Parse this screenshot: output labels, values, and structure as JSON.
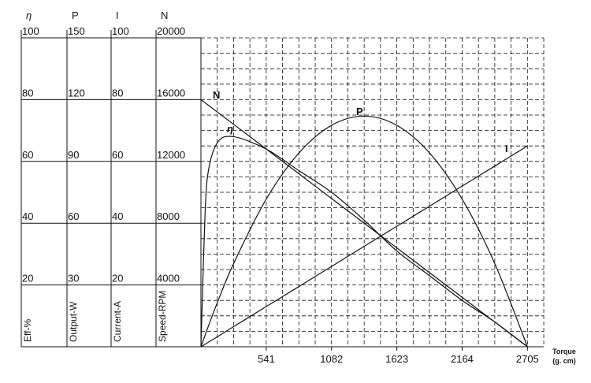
{
  "chart_data": {
    "type": "line",
    "x_label": "Torque",
    "x_unit": "(g. cm)",
    "x": [
      0,
      27,
      54,
      135,
      270,
      541,
      812,
      1082,
      1352,
      1623,
      1894,
      2164,
      2435,
      2705
    ],
    "xlim": [
      0,
      2840
    ],
    "xticks": [
      541,
      1082,
      1623,
      2164,
      2705
    ],
    "grid": true,
    "color": "#111111",
    "axes": [
      {
        "symbol": "η",
        "title": "Eff-%",
        "ylim": [
          0,
          100
        ],
        "yticks": [
          20,
          40,
          60,
          80,
          100
        ]
      },
      {
        "symbol": "P",
        "title": "Output-W",
        "ylim": [
          0,
          150
        ],
        "yticks": [
          30,
          60,
          90,
          120,
          150
        ]
      },
      {
        "symbol": "I",
        "title": "Current-A",
        "ylim": [
          0,
          100
        ],
        "yticks": [
          20,
          40,
          60,
          80,
          100
        ]
      },
      {
        "symbol": "N",
        "title": "Speed-RPM",
        "ylim": [
          0,
          20000
        ],
        "yticks": [
          4000,
          8000,
          12000,
          16000,
          20000
        ]
      }
    ],
    "series": [
      {
        "name": "N",
        "axis": 3,
        "values": [
          16000,
          15840,
          15681,
          15201,
          14403,
          12800,
          11197,
          9600,
          8003,
          6400,
          4797,
          3200,
          1597,
          0
        ]
      },
      {
        "name": "η",
        "axis": 0,
        "values": [
          0,
          35,
          55,
          66,
          68,
          64,
          57,
          50,
          41,
          31,
          23,
          15,
          8,
          0
        ]
      },
      {
        "name": "P",
        "axis": 1,
        "values": [
          0,
          4.4,
          8.8,
          21.3,
          40.3,
          71.7,
          94.1,
          107.5,
          112,
          107.5,
          94.1,
          71.7,
          40.3,
          0
        ]
      },
      {
        "name": "I",
        "axis": 2,
        "values": [
          0,
          0.6,
          1.3,
          3.2,
          6.5,
          13,
          19.5,
          26,
          32.5,
          39,
          45.5,
          52,
          58.5,
          65
        ]
      }
    ]
  }
}
